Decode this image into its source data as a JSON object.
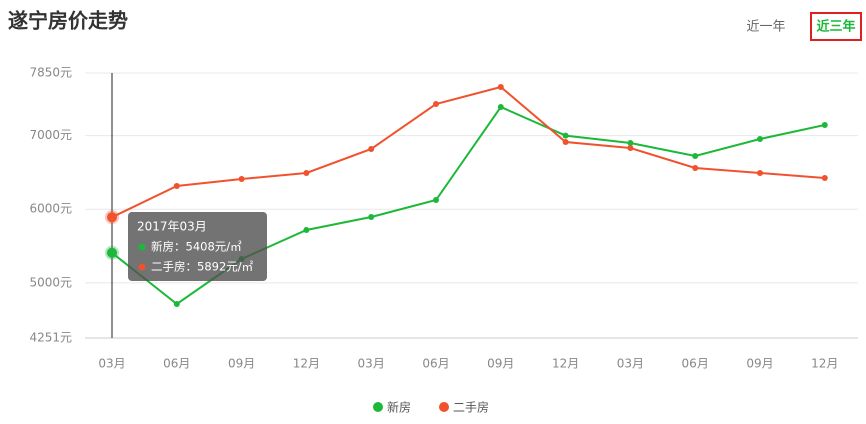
{
  "chart_data": {
    "type": "line",
    "title": "遂宁房价走势",
    "controls": [
      "近一年",
      "近三年"
    ],
    "categories": [
      "03月",
      "06月",
      "09月",
      "12月",
      "03月",
      "06月",
      "09月",
      "12月",
      "03月",
      "06月",
      "09月",
      "12月"
    ],
    "series": [
      {
        "name": "新房",
        "color": "#1db83a",
        "values": [
          5408,
          4713,
          5324,
          5718,
          5894,
          6125,
          7388,
          7000,
          6899,
          6723,
          6954,
          7144
        ]
      },
      {
        "name": "二手房",
        "color": "#f0522e",
        "values": [
          5892,
          6315,
          6410,
          6492,
          6818,
          7429,
          7660,
          6913,
          6831,
          6560,
          6492,
          6424
        ]
      }
    ],
    "ylim": [
      4251,
      7850
    ],
    "yticks": [
      {
        "value": 4251,
        "label": "4251元"
      },
      {
        "value": 5000,
        "label": "5000元"
      },
      {
        "value": 6000,
        "label": "6000元"
      },
      {
        "value": 7000,
        "label": "7000元"
      },
      {
        "value": 7850,
        "label": "7850元"
      }
    ],
    "grid": true,
    "tooltip": {
      "title": "2017年03月",
      "lines": [
        "新房：5408元/㎡",
        "二手房：5892元/㎡"
      ]
    }
  }
}
